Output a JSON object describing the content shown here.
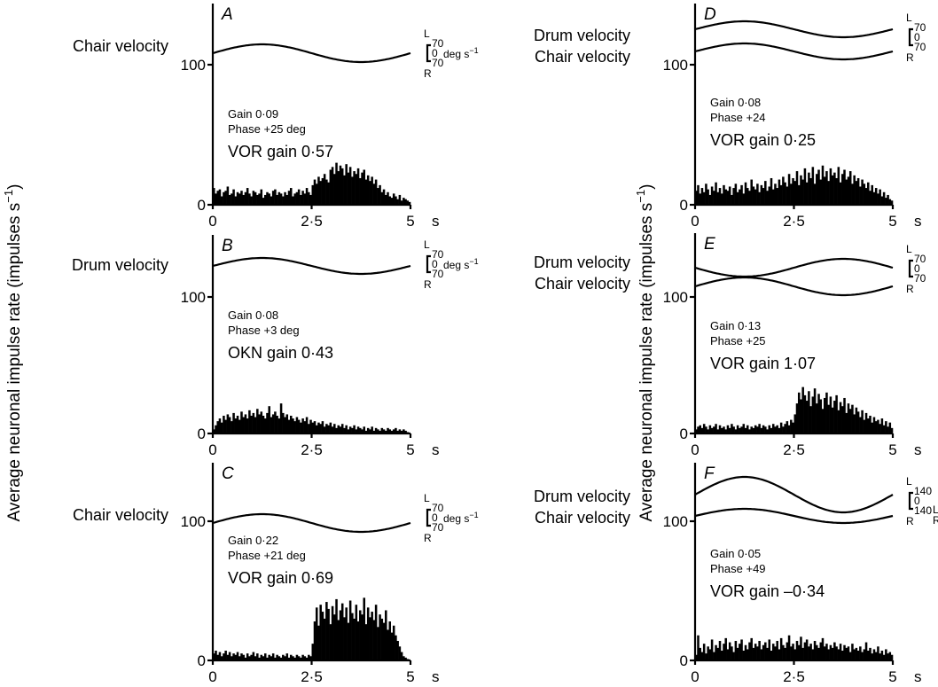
{
  "figure": {
    "y_axis_label": "Average neuronal impulse rate (impulses s",
    "y_axis_label_sup": "−1",
    "y_axis_label_close": ")",
    "x_unit": "s",
    "scale_unit": "deg s",
    "scale_unit_sup": "−1"
  },
  "chart_data": [
    {
      "id": "A",
      "type": "bar",
      "panel_label": "A",
      "stimulus_labels": [
        "Chair velocity"
      ],
      "traces": [
        {
          "name": "Chair velocity",
          "phase": 0
        }
      ],
      "scale": {
        "top": "L",
        "v1": "70",
        "mid": "0",
        "v2": "70",
        "bottom": "R",
        "unit_shown": true
      },
      "neuron_gain": "Gain 0·09",
      "neuron_phase": "Phase +25 deg",
      "reflex_gain": "VOR gain 0·57",
      "x_ticks": [
        "0",
        "2·5",
        "5"
      ],
      "y_ticks": [
        "0",
        "100"
      ],
      "ylim": [
        0,
        140
      ],
      "xlim": [
        0,
        5
      ],
      "bin_s": 0.05,
      "rates": [
        12,
        8,
        10,
        11,
        6,
        9,
        10,
        13,
        7,
        8,
        11,
        6,
        9,
        8,
        10,
        7,
        9,
        12,
        8,
        6,
        10,
        9,
        7,
        8,
        11,
        5,
        7,
        9,
        8,
        6,
        10,
        11,
        7,
        9,
        8,
        6,
        9,
        7,
        10,
        12,
        6,
        8,
        9,
        11,
        7,
        10,
        8,
        12,
        9,
        7,
        14,
        18,
        15,
        20,
        17,
        19,
        22,
        18,
        16,
        25,
        27,
        22,
        30,
        24,
        28,
        26,
        21,
        29,
        23,
        27,
        20,
        24,
        22,
        26,
        19,
        23,
        25,
        18,
        21,
        17,
        20,
        15,
        18,
        12,
        14,
        9,
        11,
        7,
        9,
        6,
        5,
        8,
        6,
        4,
        7,
        3,
        5,
        4,
        3,
        2
      ]
    },
    {
      "id": "B",
      "type": "bar",
      "panel_label": "B",
      "stimulus_labels": [
        "Drum velocity"
      ],
      "traces": [
        {
          "name": "Drum velocity",
          "phase": 0
        }
      ],
      "scale": {
        "top": "L",
        "v1": "70",
        "mid": "0",
        "v2": "70",
        "bottom": "R",
        "unit_shown": true
      },
      "neuron_gain": "Gain 0·08",
      "neuron_phase": "Phase +3 deg",
      "reflex_gain": "OKN gain 0·43",
      "x_ticks": [
        "0",
        "2·5",
        "5"
      ],
      "y_ticks": [
        "0",
        "100"
      ],
      "ylim": [
        0,
        140
      ],
      "xlim": [
        0,
        5
      ],
      "bin_s": 0.05,
      "rates": [
        3,
        6,
        9,
        11,
        8,
        13,
        10,
        14,
        12,
        9,
        15,
        11,
        13,
        10,
        16,
        12,
        14,
        11,
        17,
        13,
        15,
        12,
        18,
        14,
        16,
        13,
        11,
        15,
        20,
        12,
        14,
        16,
        13,
        11,
        22,
        15,
        12,
        14,
        10,
        13,
        11,
        9,
        12,
        10,
        8,
        11,
        9,
        12,
        7,
        10,
        8,
        9,
        6,
        8,
        7,
        9,
        5,
        7,
        6,
        8,
        5,
        7,
        4,
        6,
        5,
        7,
        4,
        6,
        3,
        5,
        4,
        6,
        3,
        5,
        4,
        3,
        5,
        2,
        4,
        3,
        5,
        2,
        4,
        3,
        2,
        4,
        3,
        2,
        4,
        3,
        2,
        3,
        4,
        2,
        3,
        2,
        3,
        2,
        1,
        0
      ]
    },
    {
      "id": "C",
      "type": "bar",
      "panel_label": "C",
      "stimulus_labels": [
        "Chair velocity"
      ],
      "traces": [
        {
          "name": "Chair velocity",
          "phase": 0
        }
      ],
      "scale": {
        "top": "L",
        "v1": "70",
        "mid": "0",
        "v2": "70",
        "bottom": "R",
        "unit_shown": true
      },
      "neuron_gain": "Gain 0·22",
      "neuron_phase": "Phase +21 deg",
      "reflex_gain": "VOR gain 0·69",
      "x_ticks": [
        "0",
        "2·5",
        "5"
      ],
      "y_ticks": [
        "0",
        "100"
      ],
      "ylim": [
        0,
        140
      ],
      "xlim": [
        0,
        5
      ],
      "bin_s": 0.05,
      "rates": [
        5,
        7,
        4,
        6,
        3,
        5,
        7,
        4,
        6,
        3,
        5,
        4,
        6,
        3,
        5,
        4,
        2,
        5,
        3,
        4,
        6,
        3,
        5,
        2,
        4,
        3,
        5,
        2,
        4,
        3,
        5,
        2,
        4,
        3,
        2,
        4,
        3,
        5,
        2,
        4,
        3,
        2,
        4,
        3,
        2,
        4,
        3,
        2,
        4,
        3,
        12,
        28,
        38,
        25,
        40,
        35,
        30,
        42,
        37,
        26,
        39,
        33,
        44,
        29,
        36,
        41,
        31,
        38,
        27,
        43,
        34,
        30,
        40,
        28,
        36,
        33,
        45,
        26,
        38,
        31,
        35,
        29,
        40,
        24,
        33,
        30,
        27,
        36,
        22,
        28,
        20,
        25,
        18,
        14,
        10,
        6,
        3,
        2,
        1,
        0
      ]
    },
    {
      "id": "D",
      "type": "bar",
      "panel_label": "D",
      "stimulus_labels": [
        "Drum velocity",
        "Chair velocity"
      ],
      "traces": [
        {
          "name": "Drum velocity",
          "phase": 0
        },
        {
          "name": "Chair velocity",
          "phase": 0
        }
      ],
      "scale": {
        "top": "L",
        "v1": "70",
        "mid": "0",
        "v2": "70",
        "bottom": "R",
        "unit_shown": false
      },
      "neuron_gain": "Gain 0·08",
      "neuron_phase": "Phase +24",
      "reflex_gain": "VOR gain 0·25",
      "x_ticks": [
        "0",
        "2·5",
        "5"
      ],
      "y_ticks": [
        "0",
        "100"
      ],
      "ylim": [
        0,
        140
      ],
      "xlim": [
        0,
        5
      ],
      "bin_s": 0.05,
      "rates": [
        10,
        14,
        8,
        12,
        9,
        15,
        11,
        7,
        13,
        10,
        16,
        9,
        12,
        8,
        14,
        11,
        10,
        13,
        7,
        12,
        15,
        9,
        11,
        14,
        8,
        16,
        12,
        10,
        18,
        13,
        11,
        15,
        9,
        14,
        12,
        17,
        10,
        13,
        19,
        11,
        15,
        12,
        18,
        14,
        20,
        16,
        13,
        22,
        15,
        19,
        17,
        24,
        14,
        21,
        18,
        26,
        16,
        23,
        19,
        27,
        15,
        22,
        25,
        18,
        28,
        20,
        24,
        17,
        26,
        21,
        23,
        19,
        27,
        16,
        22,
        25,
        18,
        20,
        24,
        15,
        21,
        17,
        19,
        13,
        18,
        15,
        12,
        16,
        10,
        14,
        9,
        12,
        8,
        11,
        6,
        9,
        5,
        7,
        4,
        3
      ]
    },
    {
      "id": "E",
      "type": "bar",
      "panel_label": "E",
      "stimulus_labels": [
        "Drum velocity",
        "Chair velocity"
      ],
      "traces": [
        {
          "name": "Drum velocity",
          "phase": 1
        },
        {
          "name": "Chair velocity",
          "phase": 0
        }
      ],
      "scale": {
        "top": "L",
        "v1": "70",
        "mid": "0",
        "v2": "70",
        "bottom": "R",
        "unit_shown": false
      },
      "neuron_gain": "Gain 0·13",
      "neuron_phase": "Phase +25",
      "reflex_gain": "VOR gain 1·07",
      "x_ticks": [
        "0",
        "2·5",
        "5"
      ],
      "y_ticks": [
        "0",
        "100"
      ],
      "ylim": [
        0,
        140
      ],
      "xlim": [
        0,
        5
      ],
      "bin_s": 0.05,
      "rates": [
        3,
        5,
        6,
        4,
        7,
        5,
        3,
        6,
        4,
        5,
        7,
        3,
        6,
        4,
        5,
        3,
        6,
        4,
        7,
        5,
        3,
        6,
        4,
        5,
        7,
        4,
        6,
        3,
        5,
        4,
        6,
        5,
        7,
        4,
        6,
        5,
        3,
        6,
        4,
        7,
        5,
        6,
        4,
        8,
        5,
        7,
        9,
        6,
        10,
        8,
        14,
        22,
        30,
        25,
        34,
        28,
        24,
        31,
        20,
        27,
        33,
        22,
        29,
        25,
        18,
        26,
        30,
        21,
        27,
        19,
        24,
        28,
        17,
        23,
        20,
        26,
        15,
        22,
        18,
        21,
        14,
        19,
        16,
        12,
        17,
        10,
        15,
        11,
        13,
        8,
        12,
        9,
        10,
        7,
        11,
        6,
        9,
        5,
        8,
        4
      ]
    },
    {
      "id": "F",
      "type": "bar",
      "panel_label": "F",
      "stimulus_labels": [
        "Drum velocity",
        "Chair velocity"
      ],
      "traces": [
        {
          "name": "Drum velocity",
          "phase": 0
        },
        {
          "name": "Chair velocity",
          "phase": 0
        }
      ],
      "scale": {
        "top": "L",
        "v1": "140",
        "mid": "0",
        "v2": "140",
        "bottom": "R",
        "unit_shown": false,
        "extra_L": "L",
        "extra_R": "R"
      },
      "neuron_gain": "Gain 0·05",
      "neuron_phase": "Phase +49",
      "reflex_gain": "VOR gain –0·34",
      "x_ticks": [
        "0",
        "2·5",
        "5"
      ],
      "y_ticks": [
        "0",
        "100"
      ],
      "ylim": [
        0,
        140
      ],
      "xlim": [
        0,
        5
      ],
      "bin_s": 0.05,
      "rates": [
        4,
        18,
        9,
        6,
        12,
        5,
        10,
        8,
        15,
        6,
        11,
        9,
        14,
        7,
        12,
        16,
        8,
        13,
        10,
        6,
        14,
        9,
        12,
        15,
        7,
        11,
        8,
        13,
        16,
        9,
        12,
        10,
        14,
        8,
        11,
        13,
        9,
        15,
        7,
        12,
        10,
        14,
        8,
        16,
        11,
        9,
        13,
        18,
        10,
        12,
        8,
        14,
        11,
        17,
        9,
        13,
        15,
        10,
        12,
        8,
        14,
        11,
        9,
        13,
        16,
        10,
        12,
        8,
        11,
        9,
        13,
        10,
        8,
        12,
        7,
        11,
        9,
        10,
        6,
        12,
        8,
        9,
        7,
        10,
        6,
        8,
        13,
        7,
        9,
        5,
        8,
        6,
        10,
        5,
        7,
        4,
        8,
        5,
        6,
        4
      ]
    }
  ]
}
